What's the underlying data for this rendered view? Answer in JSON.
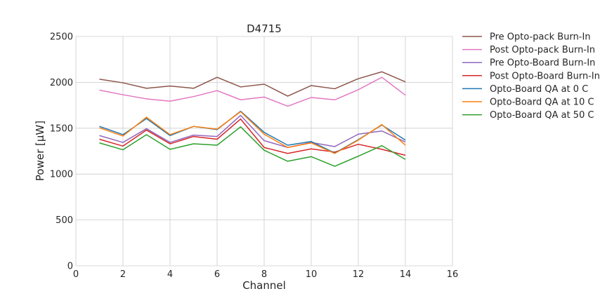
{
  "chart_data": {
    "type": "line",
    "title": "D4715",
    "xlabel": "Channel",
    "ylabel": "Power [µW]",
    "xlim": [
      0,
      16
    ],
    "ylim": [
      0,
      2500
    ],
    "xticks": [
      0,
      2,
      4,
      6,
      8,
      10,
      12,
      14,
      16
    ],
    "yticks": [
      0,
      500,
      1000,
      1500,
      2000,
      2500
    ],
    "grid": true,
    "legend_position": "outside-right",
    "x": [
      1,
      2,
      3,
      4,
      5,
      6,
      7,
      8,
      9,
      10,
      11,
      12,
      13,
      14
    ],
    "series": [
      {
        "name": "Pre Opto-pack Burn-In",
        "color": "#8c564b",
        "values": [
          2035,
          1995,
          1935,
          1960,
          1935,
          2055,
          1950,
          1980,
          1850,
          1965,
          1930,
          2040,
          2115,
          2005
        ]
      },
      {
        "name": "Post Opto-pack Burn-In",
        "color": "#e377c2",
        "values": [
          1915,
          1865,
          1820,
          1795,
          1845,
          1910,
          1810,
          1840,
          1740,
          1835,
          1810,
          1920,
          2055,
          1860
        ]
      },
      {
        "name": "Pre Opto-Board Burn-In",
        "color": "#9467bd",
        "values": [
          1420,
          1345,
          1495,
          1345,
          1425,
          1410,
          1640,
          1365,
          1290,
          1345,
          1300,
          1435,
          1470,
          1350
        ]
      },
      {
        "name": "Post Opto-Board Burn-In",
        "color": "#d62728",
        "values": [
          1380,
          1305,
          1480,
          1330,
          1410,
          1380,
          1600,
          1290,
          1225,
          1275,
          1240,
          1325,
          1270,
          1205
        ]
      },
      {
        "name": "Opto-Board QA at 0 C",
        "color": "#1f77b4",
        "values": [
          1520,
          1430,
          1605,
          1420,
          1520,
          1485,
          1685,
          1455,
          1315,
          1355,
          1230,
          1375,
          1535,
          1370
        ]
      },
      {
        "name": "Opto-Board QA at 10 C",
        "color": "#ff7f0e",
        "values": [
          1505,
          1415,
          1620,
          1430,
          1520,
          1490,
          1680,
          1435,
          1290,
          1340,
          1225,
          1370,
          1540,
          1315
        ]
      },
      {
        "name": "Opto-Board QA at 50 C",
        "color": "#2ca02c",
        "values": [
          1340,
          1265,
          1430,
          1270,
          1330,
          1315,
          1515,
          1260,
          1140,
          1190,
          1085,
          1195,
          1310,
          1160
        ]
      }
    ]
  }
}
